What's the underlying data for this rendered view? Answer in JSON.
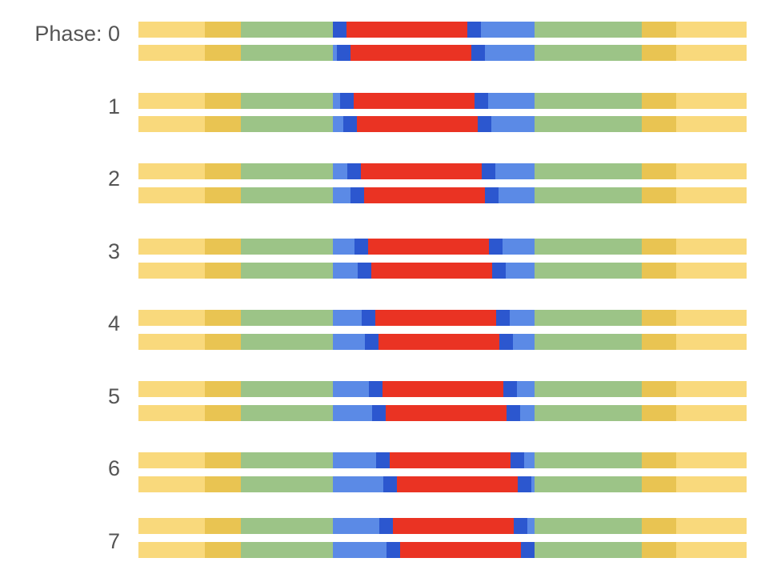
{
  "colors": {
    "light_yellow": "#f9d97c",
    "dark_yellow": "#e9c452",
    "green": "#9cc487",
    "light_blue": "#5b8ae6",
    "dark_blue": "#2c57cf",
    "red": "#ea3323"
  },
  "phase_prefix": "Phase: ",
  "phases": [
    {
      "label": "0",
      "bars": [
        {
          "shift": 0
        },
        {
          "shift": 5
        }
      ]
    },
    {
      "label": "1",
      "bars": [
        {
          "shift": 9
        },
        {
          "shift": 13
        }
      ]
    },
    {
      "label": "2",
      "bars": [
        {
          "shift": 18
        },
        {
          "shift": 22
        }
      ]
    },
    {
      "label": "3",
      "bars": [
        {
          "shift": 27
        },
        {
          "shift": 31
        }
      ]
    },
    {
      "label": "4",
      "bars": [
        {
          "shift": 36
        },
        {
          "shift": 40
        }
      ]
    },
    {
      "label": "5",
      "bars": [
        {
          "shift": 45
        },
        {
          "shift": 49
        }
      ]
    },
    {
      "label": "6",
      "bars": [
        {
          "shift": 54
        },
        {
          "shift": 63
        }
      ]
    },
    {
      "label": "7",
      "bars": [
        {
          "shift": 58
        },
        {
          "shift": 67
        }
      ]
    }
  ]
}
